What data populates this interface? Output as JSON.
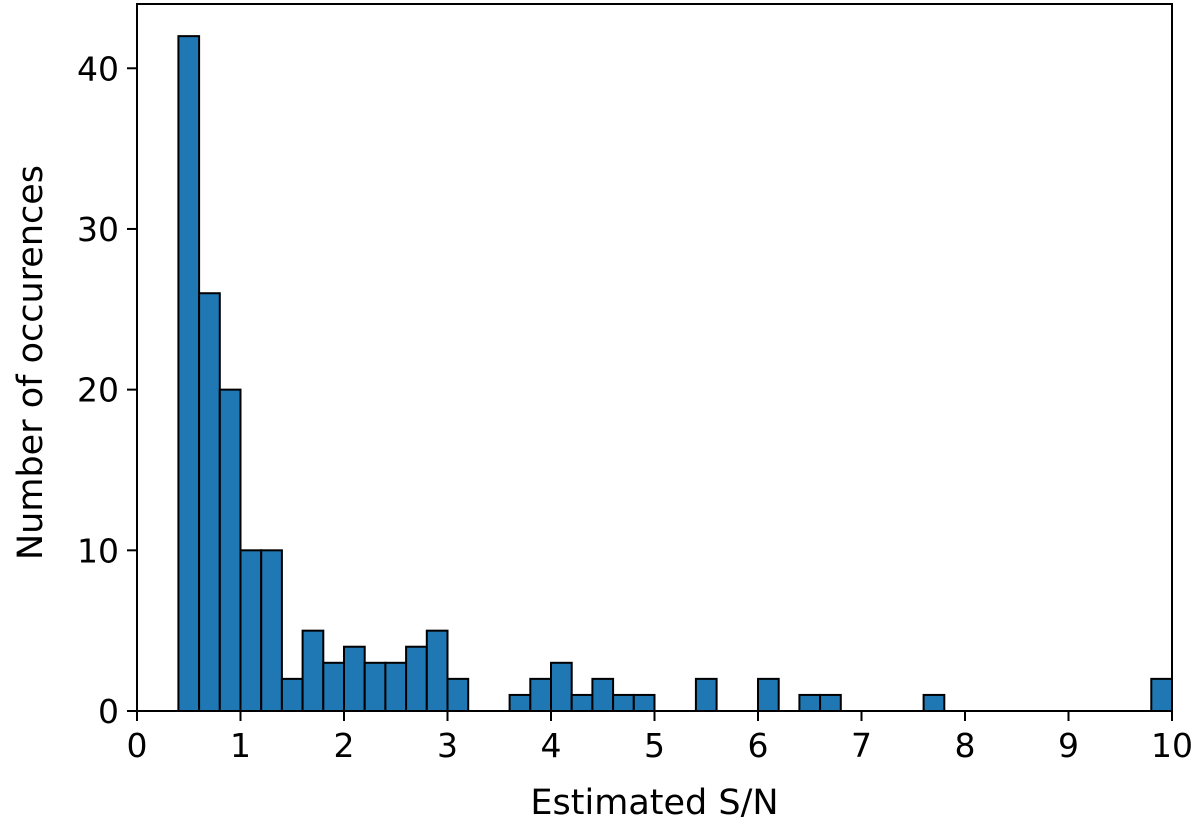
{
  "chart_data": {
    "type": "bar",
    "xlabel": "Estimated S/N",
    "ylabel": "Number of occurences",
    "xlim": [
      0,
      10
    ],
    "ylim": [
      0,
      44
    ],
    "xticks": [
      "0",
      "1",
      "2",
      "3",
      "4",
      "5",
      "6",
      "7",
      "8",
      "9",
      "10"
    ],
    "yticks": [
      "0",
      "10",
      "20",
      "30",
      "40"
    ],
    "bar_color": "#1f77b4",
    "edge_color": "#000000",
    "bins": [
      {
        "x0": 0.4,
        "x1": 0.6,
        "count": 42
      },
      {
        "x0": 0.6,
        "x1": 0.8,
        "count": 26
      },
      {
        "x0": 0.8,
        "x1": 1.0,
        "count": 20
      },
      {
        "x0": 1.0,
        "x1": 1.2,
        "count": 10
      },
      {
        "x0": 1.2,
        "x1": 1.4,
        "count": 10
      },
      {
        "x0": 1.4,
        "x1": 1.6,
        "count": 2
      },
      {
        "x0": 1.6,
        "x1": 1.8,
        "count": 5
      },
      {
        "x0": 1.8,
        "x1": 2.0,
        "count": 3
      },
      {
        "x0": 2.0,
        "x1": 2.2,
        "count": 4
      },
      {
        "x0": 2.2,
        "x1": 2.4,
        "count": 3
      },
      {
        "x0": 2.4,
        "x1": 2.6,
        "count": 3
      },
      {
        "x0": 2.6,
        "x1": 2.8,
        "count": 4
      },
      {
        "x0": 2.8,
        "x1": 3.0,
        "count": 5
      },
      {
        "x0": 3.0,
        "x1": 3.2,
        "count": 2
      },
      {
        "x0": 3.6,
        "x1": 3.8,
        "count": 1
      },
      {
        "x0": 3.8,
        "x1": 4.0,
        "count": 2
      },
      {
        "x0": 4.0,
        "x1": 4.2,
        "count": 3
      },
      {
        "x0": 4.2,
        "x1": 4.4,
        "count": 1
      },
      {
        "x0": 4.4,
        "x1": 4.6,
        "count": 2
      },
      {
        "x0": 4.6,
        "x1": 4.8,
        "count": 1
      },
      {
        "x0": 4.8,
        "x1": 5.0,
        "count": 1
      },
      {
        "x0": 5.4,
        "x1": 5.6,
        "count": 2
      },
      {
        "x0": 6.0,
        "x1": 6.2,
        "count": 2
      },
      {
        "x0": 6.4,
        "x1": 6.6,
        "count": 1
      },
      {
        "x0": 6.6,
        "x1": 6.8,
        "count": 1
      },
      {
        "x0": 7.6,
        "x1": 7.8,
        "count": 1
      },
      {
        "x0": 9.8,
        "x1": 10.0,
        "count": 2
      }
    ]
  }
}
